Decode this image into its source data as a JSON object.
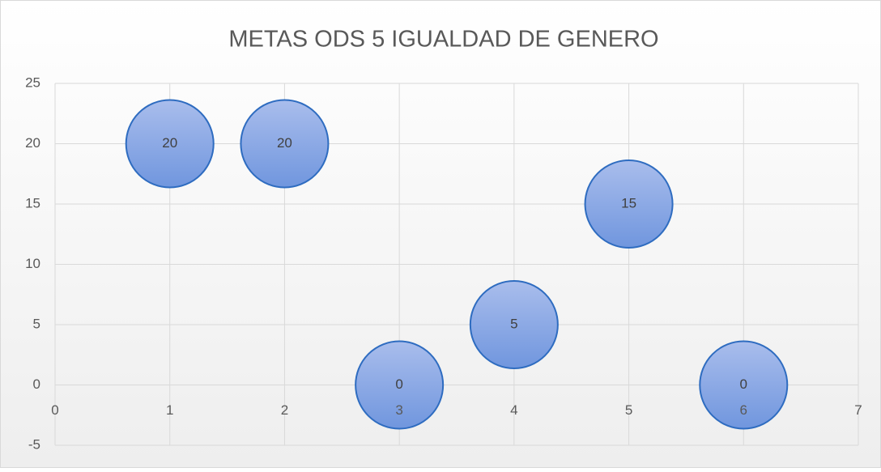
{
  "chart_data": {
    "type": "bubble",
    "title": "METAS ODS 5 IGUALDAD DE GENERO",
    "x": [
      1,
      2,
      3,
      4,
      5,
      6
    ],
    "values": [
      20,
      20,
      0,
      5,
      15,
      0
    ],
    "sizes": [
      1,
      1,
      1,
      1,
      1,
      1
    ],
    "color": "#8faae6",
    "edge_color": "#2e6cc0",
    "xlim": [
      0,
      7
    ],
    "xticks": [
      0,
      1,
      2,
      3,
      4,
      5,
      6,
      7
    ],
    "ylim": [
      -5,
      25
    ],
    "yticks": [
      -5,
      0,
      5,
      10,
      15,
      20,
      25
    ],
    "grid": true
  }
}
